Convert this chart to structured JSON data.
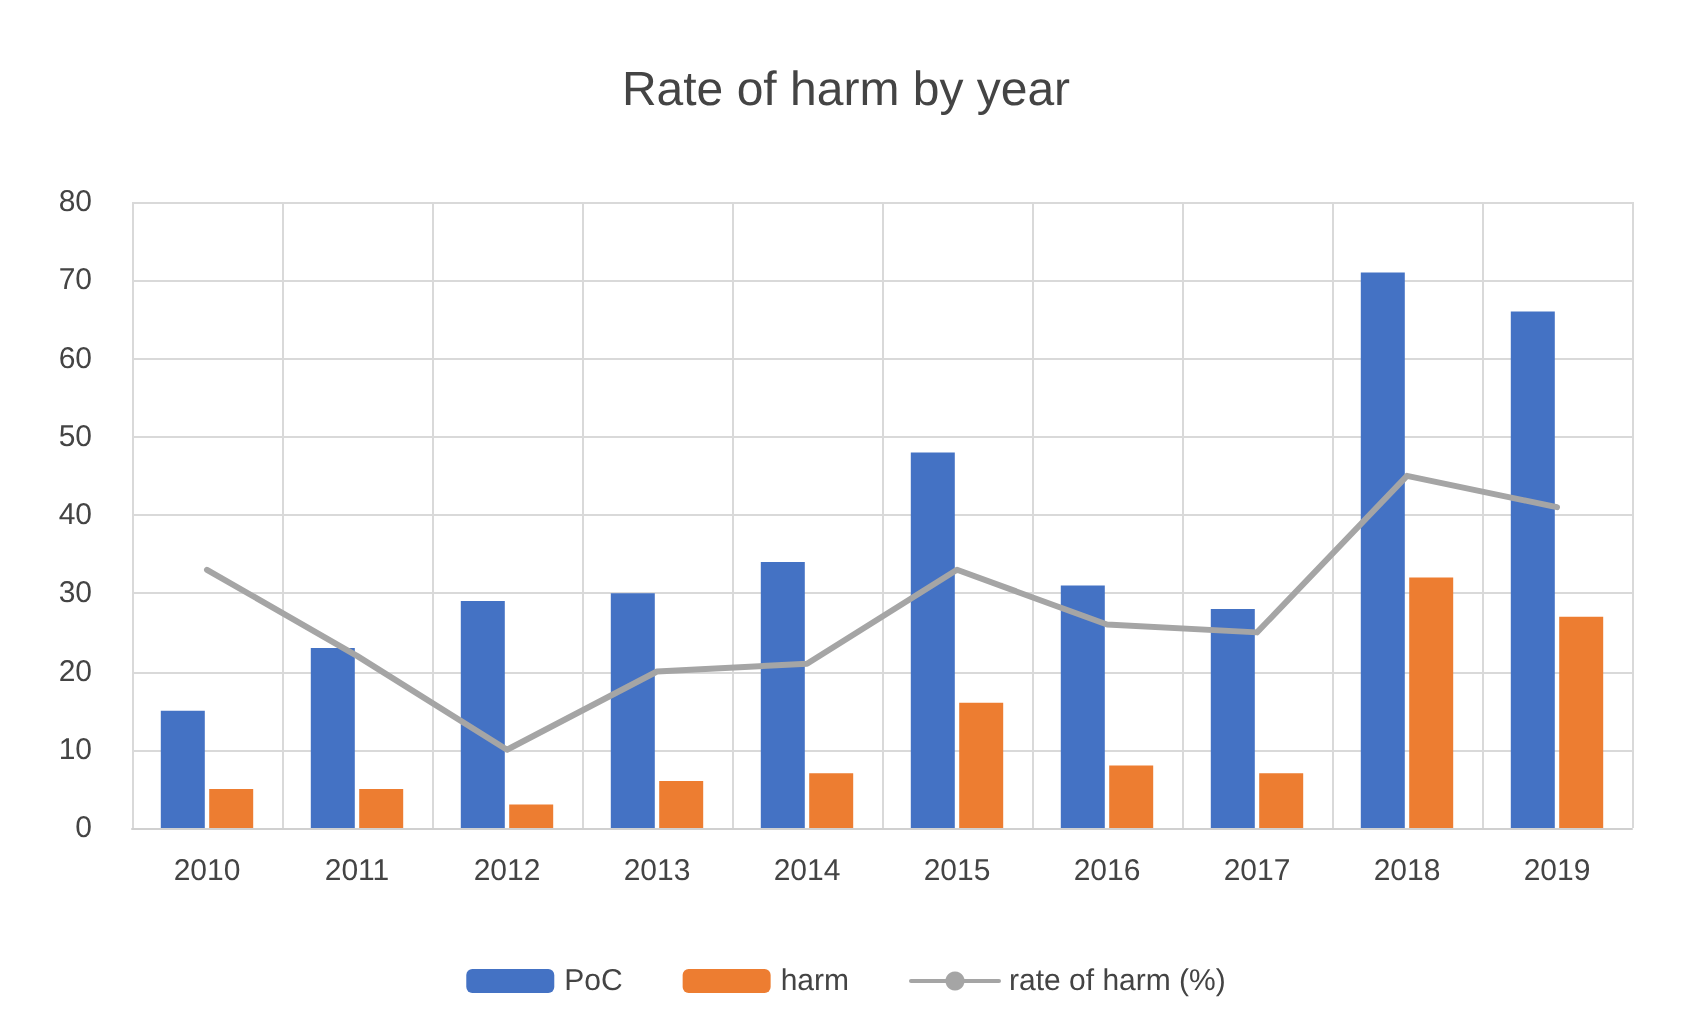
{
  "chart_data": {
    "type": "bar",
    "title": "Rate of harm by year",
    "categories": [
      "2010",
      "2011",
      "2012",
      "2013",
      "2014",
      "2015",
      "2016",
      "2017",
      "2018",
      "2019"
    ],
    "series": [
      {
        "name": "PoC",
        "color": "#4472c4",
        "values": [
          15,
          23,
          29,
          30,
          34,
          48,
          31,
          28,
          71,
          66
        ]
      },
      {
        "name": "harm",
        "color": "#ed7d31",
        "values": [
          5,
          5,
          3,
          6,
          7,
          16,
          8,
          7,
          32,
          27
        ]
      },
      {
        "name": "rate of harm (%)",
        "type": "line",
        "color": "#a5a5a5",
        "values": [
          33,
          22,
          10,
          20,
          21,
          33,
          26,
          25,
          45,
          41
        ]
      }
    ],
    "ylim": [
      0,
      80
    ],
    "yticks": [
      0,
      10,
      20,
      30,
      40,
      50,
      60,
      70,
      80
    ],
    "grid": true,
    "legend": "bottom",
    "marker": "none"
  }
}
